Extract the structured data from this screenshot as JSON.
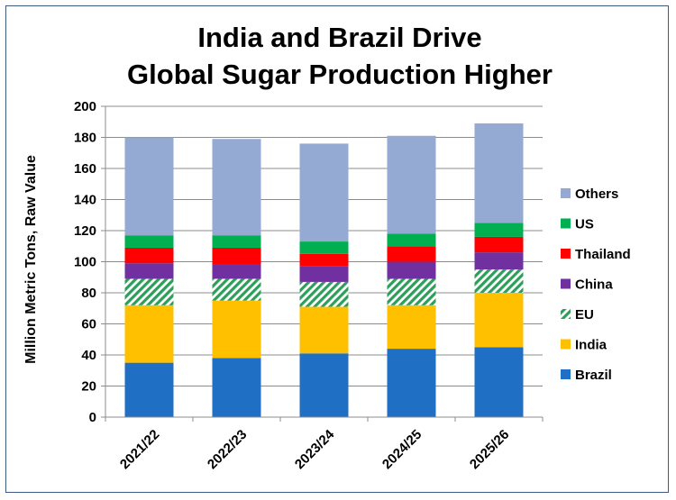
{
  "chart_data": {
    "type": "bar",
    "stacked": true,
    "title_lines": [
      "India and Brazil Drive",
      "Global Sugar Production Higher"
    ],
    "ylabel": "Million Metric Tons, Raw Value",
    "xlabel": "",
    "ylim": [
      0,
      200
    ],
    "yticks": [
      0,
      20,
      40,
      60,
      80,
      100,
      120,
      140,
      160,
      180,
      200
    ],
    "categories": [
      "2021/22",
      "2022/23",
      "2023/24",
      "2024/25",
      "2025/26"
    ],
    "grid": true,
    "legend_position": "right",
    "series": [
      {
        "name": "Brazil",
        "color": "#1f6fc5",
        "pattern": "solid",
        "values": [
          35,
          38,
          41,
          44,
          45
        ]
      },
      {
        "name": "India",
        "color": "#ffc000",
        "pattern": "solid",
        "values": [
          37,
          37,
          30,
          28,
          35
        ]
      },
      {
        "name": "EU",
        "color": "#2e9e5b",
        "pattern": "hatched",
        "values": [
          17,
          14,
          16,
          17,
          15
        ]
      },
      {
        "name": "China",
        "color": "#7030a0",
        "pattern": "solid",
        "values": [
          10,
          9,
          10,
          11,
          11
        ]
      },
      {
        "name": "Thailand",
        "color": "#ff0000",
        "pattern": "solid",
        "values": [
          10,
          11,
          8,
          10,
          10
        ]
      },
      {
        "name": "US",
        "color": "#00b050",
        "pattern": "solid",
        "values": [
          8,
          8,
          8,
          8,
          9
        ]
      },
      {
        "name": "Others",
        "color": "#95aad3",
        "pattern": "solid",
        "values": [
          63,
          62,
          63,
          63,
          64
        ]
      }
    ]
  }
}
